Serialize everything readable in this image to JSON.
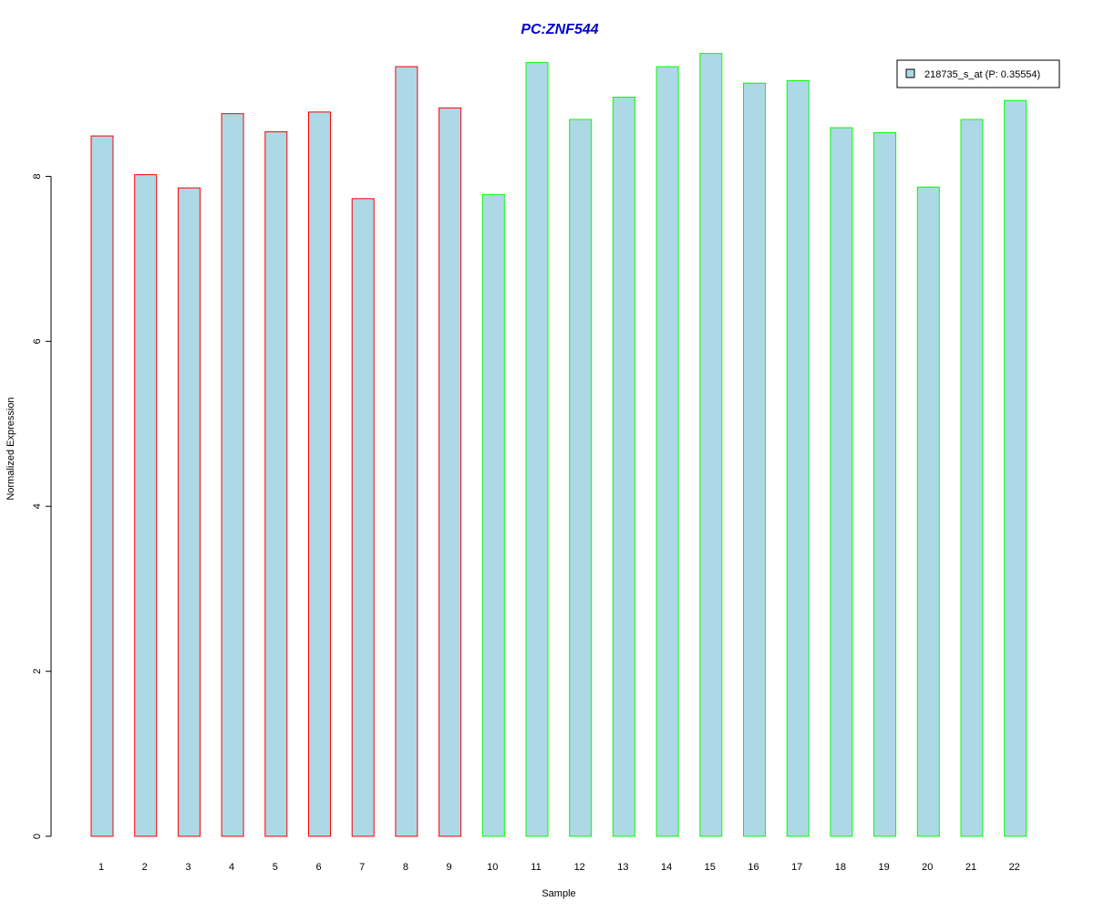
{
  "colors": {
    "bar_fill": "#add8e6",
    "group_a_border": "#ff0000",
    "group_b_border": "#00ff00",
    "title": "#0000cd",
    "axis": "#000000"
  },
  "chart_data": {
    "type": "bar",
    "title": "PC:ZNF544",
    "xlabel": "Sample",
    "ylabel": "Normalized Expression",
    "ylim": [
      0,
      9.6
    ],
    "yticks": [
      0,
      2,
      4,
      6,
      8
    ],
    "grid": false,
    "legend_position": "top-right",
    "categories": [
      "1",
      "2",
      "3",
      "4",
      "5",
      "6",
      "7",
      "8",
      "9",
      "10",
      "11",
      "12",
      "13",
      "14",
      "15",
      "16",
      "17",
      "18",
      "19",
      "20",
      "21",
      "22"
    ],
    "series": [
      {
        "name": "218735_s_at (P: 0.35554)",
        "values": [
          8.49,
          8.02,
          7.86,
          8.76,
          8.54,
          8.78,
          7.73,
          9.33,
          8.83,
          7.78,
          9.38,
          8.69,
          8.96,
          9.33,
          9.49,
          9.13,
          9.16,
          8.59,
          8.53,
          7.87,
          8.69,
          8.92
        ],
        "groups": [
          "a",
          "a",
          "a",
          "a",
          "a",
          "a",
          "a",
          "a",
          "a",
          "b",
          "b",
          "b",
          "b",
          "b",
          "b",
          "b",
          "b",
          "b",
          "b",
          "b",
          "b",
          "b"
        ]
      }
    ]
  }
}
